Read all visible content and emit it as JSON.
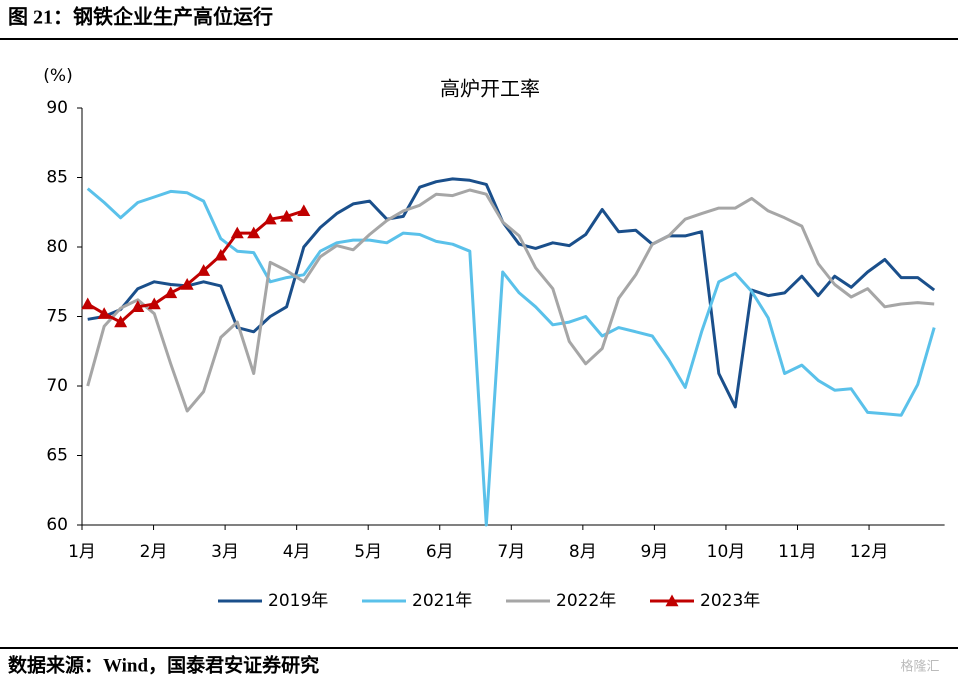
{
  "header": {
    "title": "图 21：钢铁企业生产高位运行"
  },
  "chart_data": {
    "type": "line",
    "title": "高炉开工率",
    "y_label": "(%)",
    "x": [
      1.08,
      1.31,
      1.54,
      1.78,
      2.01,
      2.24,
      2.47,
      2.7,
      2.94,
      3.17,
      3.4,
      3.63,
      3.86,
      4.1,
      4.33,
      4.56,
      4.79,
      5.02,
      5.26,
      5.49,
      5.72,
      5.95,
      6.18,
      6.42,
      6.65,
      6.88,
      7.11,
      7.34,
      7.58,
      7.81,
      8.04,
      8.27,
      8.5,
      8.74,
      8.97,
      9.2,
      9.43,
      9.66,
      9.9,
      10.13,
      10.36,
      10.59,
      10.82,
      11.06,
      11.29,
      11.52,
      11.75,
      11.98,
      12.22,
      12.45,
      12.68,
      12.91
    ],
    "xlim": [
      1,
      13
    ],
    "xticks": [
      {
        "value": 1,
        "label": "1月"
      },
      {
        "value": 2,
        "label": "2月"
      },
      {
        "value": 3,
        "label": "3月"
      },
      {
        "value": 4,
        "label": "4月"
      },
      {
        "value": 5,
        "label": "5月"
      },
      {
        "value": 6,
        "label": "6月"
      },
      {
        "value": 7,
        "label": "7月"
      },
      {
        "value": 8,
        "label": "8月"
      },
      {
        "value": 9,
        "label": "9月"
      },
      {
        "value": 10,
        "label": "10月"
      },
      {
        "value": 11,
        "label": "11月"
      },
      {
        "value": 12,
        "label": "12月"
      }
    ],
    "ylim": [
      60,
      90
    ],
    "yticks": [
      60,
      65,
      70,
      75,
      80,
      85,
      90
    ],
    "grid": false,
    "legend": "bottom",
    "series": [
      {
        "name": "2019年",
        "color": "#1a4f8b",
        "values": [
          74.8,
          75,
          75.5,
          77,
          77.5,
          77.3,
          77.2,
          77.5,
          77.2,
          74.2,
          73.9,
          75,
          75.7,
          80,
          81.4,
          82.4,
          83.1,
          83.3,
          82,
          82.2,
          84.3,
          84.7,
          84.9,
          84.8,
          84.5,
          81.8,
          80.2,
          79.9,
          80.3,
          80.1,
          80.9,
          82.7,
          81.1,
          81.2,
          80.2,
          80.8,
          80.8,
          81.1,
          70.9,
          68.5,
          76.9,
          76.5,
          76.7,
          77.9,
          76.5,
          77.9,
          77.1,
          78.2,
          79.1,
          77.8,
          77.8,
          76.9
        ]
      },
      {
        "name": "2021年",
        "color": "#5ac1ea",
        "values": [
          84.2,
          83.2,
          82.1,
          83.2,
          83.6,
          84,
          83.9,
          83.3,
          80.6,
          79.7,
          79.6,
          77.5,
          77.8,
          78,
          79.7,
          80.3,
          80.5,
          80.5,
          80.3,
          81,
          80.9,
          80.4,
          80.2,
          79.7,
          60,
          78.2,
          76.7,
          75.7,
          74.4,
          74.6,
          75,
          73.6,
          74.2,
          73.9,
          73.6,
          71.9,
          69.9,
          73.9,
          77.5,
          78.1,
          76.8,
          74.9,
          70.9,
          71.5,
          70.4,
          69.7,
          69.8,
          68.1,
          68,
          67.9,
          70.1,
          74.2
        ]
      },
      {
        "name": "2022年",
        "color": "#a6a6a6",
        "values": [
          70,
          74.3,
          75.6,
          76.2,
          75.2,
          71.6,
          68.2,
          69.6,
          73.5,
          74.6,
          70.9,
          78.9,
          78.3,
          77.5,
          79.3,
          80.1,
          79.8,
          80.9,
          81.9,
          82.6,
          83,
          83.8,
          83.7,
          84.1,
          83.8,
          81.8,
          80.8,
          78.5,
          77,
          73.2,
          71.6,
          72.7,
          76.3,
          78,
          80.2,
          80.8,
          82,
          82.4,
          82.8,
          82.8,
          83.5,
          82.6,
          82.1,
          81.5,
          78.8,
          77.3,
          76.4,
          77,
          75.7,
          75.9,
          76,
          75.9
        ]
      },
      {
        "name": "2023年",
        "color": "#c00000",
        "marker": "triangle",
        "values": [
          75.9,
          75.2,
          74.6,
          75.7,
          75.9,
          76.7,
          77.3,
          78.3,
          79.4,
          81,
          81,
          82,
          82.2,
          82.6,
          null,
          null,
          null,
          null,
          null,
          null,
          null,
          null,
          null,
          null,
          null,
          null,
          null,
          null,
          null,
          null,
          null,
          null,
          null,
          null,
          null,
          null,
          null,
          null,
          null,
          null,
          null,
          null,
          null,
          null,
          null,
          null,
          null,
          null,
          null,
          null,
          null,
          null
        ]
      }
    ]
  },
  "footer": {
    "source": "数据来源：Wind，国泰君安证券研究",
    "watermark": "格隆汇"
  }
}
